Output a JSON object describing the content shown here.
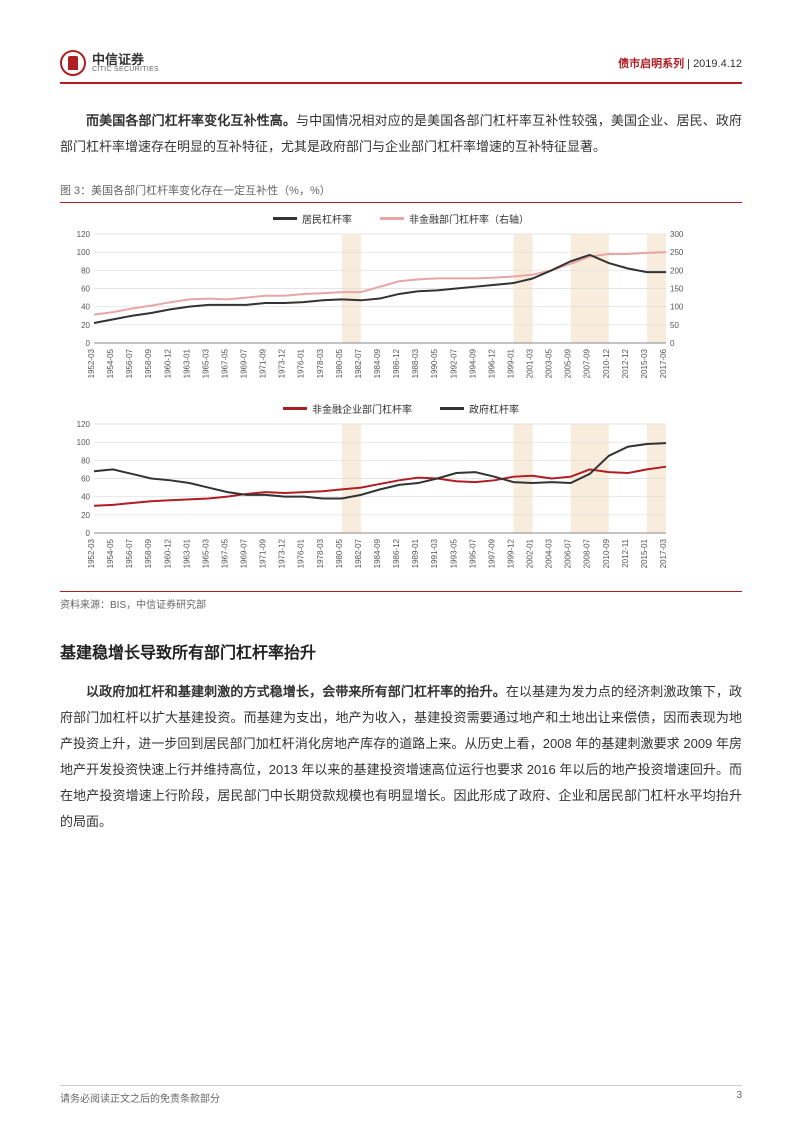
{
  "header": {
    "logo_cn": "中信证券",
    "logo_en": "CITIC SECURITIES",
    "series": "债市启明系列",
    "date": "2019.4.12"
  },
  "para1": {
    "lead": "而美国各部门杠杆率变化互补性高。",
    "body": "与中国情况相对应的是美国各部门杠杆率互补性较强，美国企业、居民、政府部门杠杆率增速存在明显的互补特征，尤其是政府部门与企业部门杠杆率增速的互补特征显著。"
  },
  "figure3": {
    "title": "图 3：美国各部门杠杆率变化存在一定互补性（%，%）",
    "source": "资料来源：BIS，中信证券研究部",
    "chart1": {
      "type": "line-dual-axis",
      "legend": {
        "left": {
          "label": "居民杠杆率",
          "color": "#333333"
        },
        "right": {
          "label": "非金融部门杠杆率（右轴）",
          "color": "#e8a5a5"
        }
      },
      "y_left_ticks": [
        0,
        20,
        40,
        60,
        80,
        100,
        120
      ],
      "y_right_ticks": [
        0,
        50,
        100,
        150,
        200,
        250,
        300
      ],
      "x_labels": [
        "1952-03",
        "1954-05",
        "1956-07",
        "1958-09",
        "1960-12",
        "1963-01",
        "1965-03",
        "1967-05",
        "1969-07",
        "1971-09",
        "1973-12",
        "1976-01",
        "1978-03",
        "1980-05",
        "1982-07",
        "1984-09",
        "1986-12",
        "1988-03",
        "1990-05",
        "1992-07",
        "1994-09",
        "1996-12",
        "1999-01",
        "2001-03",
        "2003-05",
        "2005-09",
        "2007-09",
        "2010-12",
        "2012-12",
        "2015-03",
        "2017-06"
      ],
      "left_series_values": [
        22,
        26,
        30,
        33,
        37,
        40,
        42,
        42,
        42,
        44,
        44,
        45,
        47,
        48,
        47,
        49,
        54,
        57,
        58,
        60,
        62,
        64,
        66,
        71,
        80,
        90,
        97,
        88,
        82,
        78,
        78
      ],
      "right_series_values": [
        78,
        85,
        95,
        103,
        112,
        120,
        122,
        120,
        125,
        130,
        130,
        135,
        137,
        140,
        140,
        155,
        170,
        175,
        178,
        178,
        178,
        180,
        183,
        188,
        200,
        218,
        238,
        245,
        245,
        248,
        250
      ],
      "highlight_bands": [
        {
          "start": 13,
          "end": 14,
          "color": "#f8eddc"
        },
        {
          "start": 22,
          "end": 23,
          "color": "#f8eddc"
        },
        {
          "start": 25,
          "end": 27,
          "color": "#f8eddc"
        },
        {
          "start": 29,
          "end": 30,
          "color": "#f8eddc"
        }
      ],
      "ylim_left": [
        0,
        120
      ],
      "ylim_right": [
        0,
        300
      ],
      "grid_color": "#dddddd",
      "background_color": "#ffffff",
      "axis_fontsize": 8
    },
    "chart2": {
      "type": "line",
      "legend": {
        "a": {
          "label": "非金融企业部门杠杆率",
          "color": "#b01e23"
        },
        "b": {
          "label": "政府杠杆率",
          "color": "#333333"
        }
      },
      "y_ticks": [
        0,
        20,
        40,
        60,
        80,
        100,
        120
      ],
      "x_labels": [
        "1952-03",
        "1954-05",
        "1956-07",
        "1958-09",
        "1960-12",
        "1963-01",
        "1965-03",
        "1967-05",
        "1969-07",
        "1971-09",
        "1973-12",
        "1976-01",
        "1978-03",
        "1980-05",
        "1982-07",
        "1984-09",
        "1986-12",
        "1989-01",
        "1991-03",
        "1993-05",
        "1995-07",
        "1997-09",
        "1999-12",
        "2002-01",
        "2004-03",
        "2006-07",
        "2008-07",
        "2010-09",
        "2012-11",
        "2015-01",
        "2017-03"
      ],
      "series_a_values": [
        30,
        31,
        33,
        35,
        36,
        37,
        38,
        40,
        43,
        45,
        44,
        45,
        46,
        48,
        50,
        54,
        58,
        61,
        60,
        57,
        56,
        58,
        62,
        63,
        60,
        62,
        70,
        67,
        66,
        70,
        73
      ],
      "series_b_values": [
        68,
        70,
        65,
        60,
        58,
        55,
        50,
        45,
        42,
        42,
        40,
        40,
        38,
        38,
        42,
        48,
        53,
        55,
        60,
        66,
        67,
        62,
        56,
        55,
        56,
        55,
        65,
        85,
        95,
        98,
        99
      ],
      "highlight_bands": [
        {
          "start": 13,
          "end": 14,
          "color": "#f8eddc"
        },
        {
          "start": 22,
          "end": 23,
          "color": "#f8eddc"
        },
        {
          "start": 25,
          "end": 27,
          "color": "#f8eddc"
        },
        {
          "start": 29,
          "end": 30,
          "color": "#f8eddc"
        }
      ],
      "ylim": [
        0,
        120
      ],
      "grid_color": "#dddddd",
      "background_color": "#ffffff",
      "axis_fontsize": 8
    }
  },
  "section_heading": "基建稳增长导致所有部门杠杆率抬升",
  "para2": {
    "lead": "以政府加杠杆和基建刺激的方式稳增长，会带来所有部门杠杆率的抬升。",
    "body": "在以基建为发力点的经济刺激政策下，政府部门加杠杆以扩大基建投资。而基建为支出，地产为收入，基建投资需要通过地产和土地出让来偿债，因而表现为地产投资上升，进一步回到居民部门加杠杆消化房地产库存的道路上来。从历史上看，2008 年的基建刺激要求 2009 年房地产开发投资快速上行并维持高位，2013 年以来的基建投资增速高位运行也要求 2016 年以后的地产投资增速回升。而在地产投资增速上行阶段，居民部门中长期贷款规模也有明显增长。因此形成了政府、企业和居民部门杠杆水平均抬升的局面。"
  },
  "footer": {
    "left": "请务必阅读正文之后的免责条款部分",
    "page": "3"
  }
}
